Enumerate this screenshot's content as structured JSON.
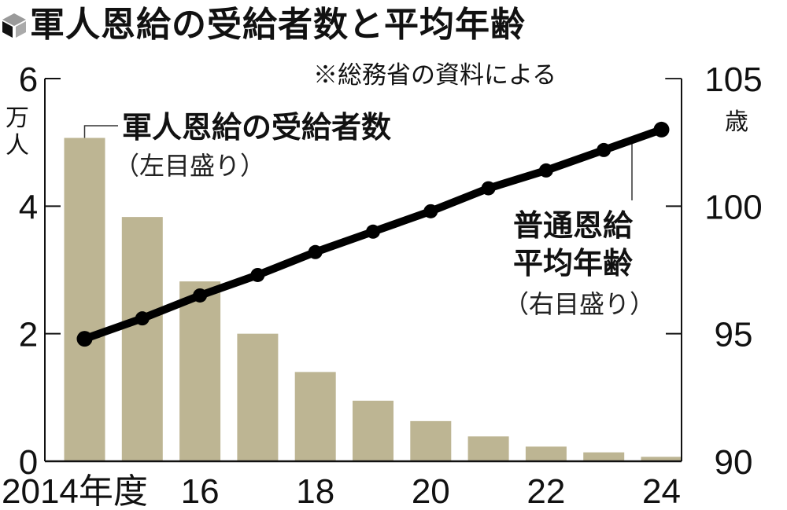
{
  "title": "軍人恩給の受給者数と平均年齢",
  "source_note": "※総務省の資料による",
  "colors": {
    "bar": "#bdb593",
    "line": "#000000",
    "axis": "#111111"
  },
  "left_axis": {
    "unit_line1": "万",
    "unit_line2": "人",
    "ticks": [
      "0",
      "2",
      "4",
      "6"
    ]
  },
  "right_axis": {
    "unit": "歳",
    "ticks": [
      "90",
      "95",
      "100",
      "105"
    ]
  },
  "x_axis": {
    "labels": [
      "2014年度",
      "16",
      "18",
      "20",
      "22",
      "24"
    ]
  },
  "annotations": {
    "bars_label": "軍人恩給の受給者数",
    "bars_sub": "（左目盛り）",
    "line_label_1": "普通恩給",
    "line_label_2": "平均年齢",
    "line_sub": "（右目盛り）"
  },
  "chart_data": {
    "type": "bar+line",
    "title": "軍人恩給の受給者数と平均年齢",
    "subtitle": "※総務省の資料による",
    "categories": [
      "2014",
      "2015",
      "2016",
      "2017",
      "2018",
      "2019",
      "2020",
      "2021",
      "2022",
      "2023",
      "2024"
    ],
    "xlabel": "年度",
    "series": [
      {
        "name": "軍人恩給の受給者数（左目盛り）",
        "type": "bar",
        "axis": "left",
        "unit": "万人",
        "values": [
          5.07,
          3.83,
          2.82,
          2.0,
          1.4,
          0.95,
          0.63,
          0.39,
          0.23,
          0.14,
          0.07
        ]
      },
      {
        "name": "普通恩給平均年齢（右目盛り）",
        "type": "line",
        "axis": "right",
        "unit": "歳",
        "values": [
          94.8,
          95.6,
          96.5,
          97.3,
          98.2,
          99.0,
          99.8,
          100.7,
          101.4,
          102.2,
          103.0
        ]
      }
    ],
    "ylabel_left": "万人",
    "ylim_left": [
      0,
      6
    ],
    "yticks_left": [
      0,
      2,
      4,
      6
    ],
    "ylabel_right": "歳",
    "ylim_right": [
      90,
      105
    ],
    "yticks_right": [
      90,
      95,
      100,
      105
    ],
    "xtick_labels": [
      "2014年度",
      "16",
      "18",
      "20",
      "22",
      "24"
    ],
    "grid": false,
    "legend": "inline annotations"
  }
}
